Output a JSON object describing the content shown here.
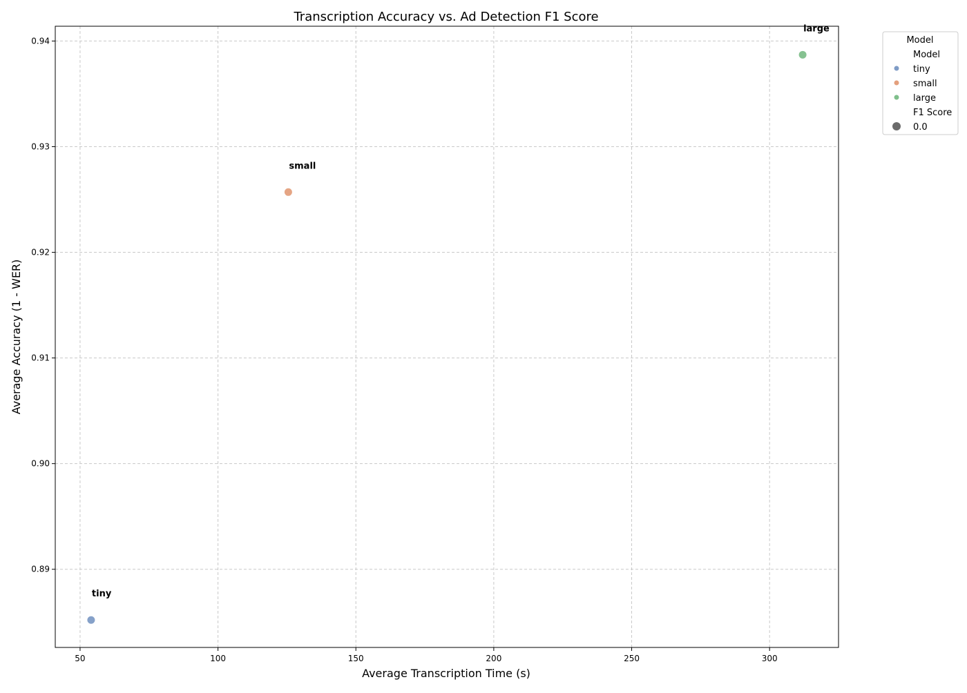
{
  "chart_data": {
    "type": "scatter",
    "title": "Transcription Accuracy vs. Ad Detection F1 Score",
    "xlabel": "Average Transcription Time (s)",
    "ylabel": "Average Accuracy (1 - WER)",
    "xlim": [
      41,
      325
    ],
    "ylim": [
      0.8826,
      0.9414
    ],
    "xticks": [
      50,
      100,
      150,
      200,
      250,
      300
    ],
    "yticks": [
      0.89,
      0.9,
      0.91,
      0.92,
      0.93,
      0.94
    ],
    "grid": true,
    "points": [
      {
        "model": "tiny",
        "x": 54.0,
        "y": 0.8852,
        "f1": 0.0,
        "color": "#7f9cc6",
        "label": "tiny"
      },
      {
        "model": "small",
        "x": 125.5,
        "y": 0.9257,
        "f1": 0.0,
        "color": "#e4a07d",
        "label": "small"
      },
      {
        "model": "large",
        "x": 312.0,
        "y": 0.9387,
        "f1": 0.0,
        "color": "#7fbf8b",
        "label": "large"
      }
    ],
    "legend": {
      "placement": "outside-right",
      "title": "Model",
      "hue_title": "Model",
      "hue_entries": [
        {
          "label": "tiny",
          "color": "#7f9cc6"
        },
        {
          "label": "small",
          "color": "#e4a07d"
        },
        {
          "label": "large",
          "color": "#7fbf8b"
        }
      ],
      "size_title": "F1 Score",
      "size_entries": [
        {
          "label": "0.0",
          "color": "#6b6b6b"
        }
      ]
    }
  }
}
